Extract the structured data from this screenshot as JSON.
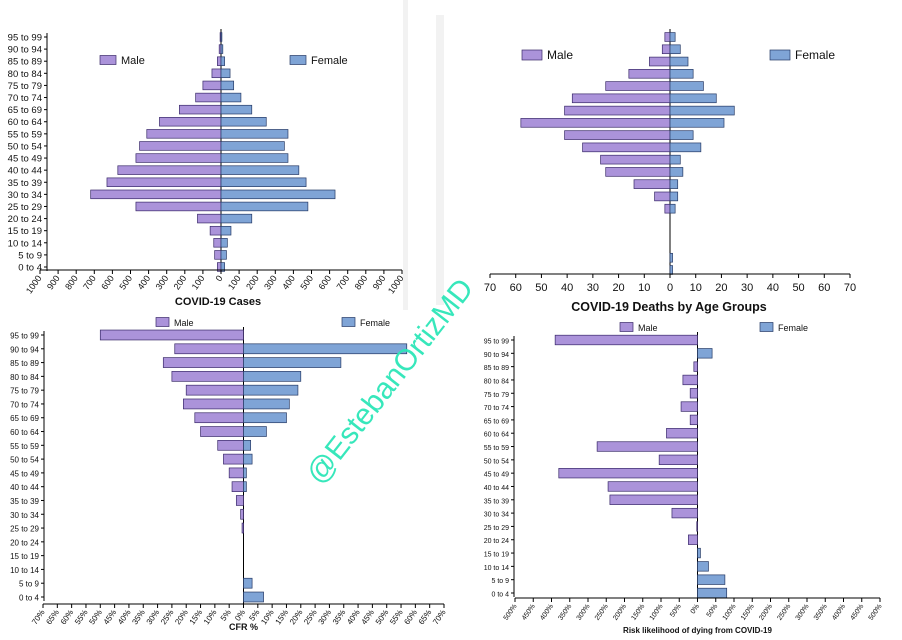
{
  "watermark": "@EstebanOrtizMD",
  "colors": {
    "male": "#ab93da",
    "female": "#7fa4d6",
    "male_stroke": "#3a2a6a",
    "female_stroke": "#263a66",
    "axis": "#000000"
  },
  "chart_data": [
    {
      "id": "cases",
      "type": "bar",
      "orientation": "horizontal-population-pyramid",
      "title": "COVID-19 Cases",
      "categories": [
        "95 to 99",
        "90 to 94",
        "85 to 89",
        "80 to 84",
        "75 to 79",
        "70 to 74",
        "65 to 69",
        "60 to 64",
        "55 to 59",
        "50 to 54",
        "45 to 49",
        "40 to 44",
        "35 to 39",
        "30 to 34",
        "25 to 29",
        "20 to 24",
        "15 to 19",
        "10 to 14",
        "5 to 9",
        "0 to 4"
      ],
      "legend": {
        "male": "Male",
        "female": "Female"
      },
      "xlim": [
        -1000,
        1000
      ],
      "xticks": [
        -1000,
        -900,
        -800,
        -700,
        -600,
        -500,
        -400,
        -300,
        -200,
        -100,
        0,
        100,
        200,
        300,
        400,
        500,
        600,
        700,
        800,
        900,
        1000
      ],
      "xtick_labels": [
        "1000",
        "900",
        "800",
        "700",
        "600",
        "500",
        "400",
        "300",
        "200",
        "100",
        "0",
        "100",
        "200",
        "300",
        "400",
        "500",
        "600",
        "700",
        "800",
        "900",
        "1000"
      ],
      "series": [
        {
          "name": "Male",
          "values": [
            -5,
            -10,
            -20,
            -50,
            -100,
            -140,
            -230,
            -340,
            -410,
            -450,
            -470,
            -570,
            -630,
            -720,
            -470,
            -130,
            -60,
            -40,
            -35,
            -20
          ]
        },
        {
          "name": "Female",
          "values": [
            5,
            10,
            20,
            50,
            70,
            110,
            170,
            250,
            370,
            350,
            370,
            430,
            470,
            630,
            480,
            170,
            55,
            35,
            30,
            20
          ]
        }
      ]
    },
    {
      "id": "deaths",
      "type": "bar",
      "orientation": "horizontal-population-pyramid",
      "title": "COVID-19  Deaths by Age Groups",
      "legend": {
        "male": "Male",
        "female": "Female"
      },
      "xlim": [
        -70,
        70
      ],
      "xticks": [
        -70,
        -60,
        -50,
        -40,
        -30,
        -20,
        -10,
        0,
        10,
        20,
        30,
        40,
        50,
        60,
        70
      ],
      "xtick_labels": [
        "70",
        "60",
        "50",
        "40",
        "30",
        "20",
        "10",
        "0",
        "10",
        "20",
        "30",
        "40",
        "50",
        "60",
        "70"
      ],
      "series": [
        {
          "name": "Male",
          "values": [
            -2,
            -3,
            -8,
            -16,
            -25,
            -38,
            -41,
            -58,
            -41,
            -34,
            -27,
            -25,
            -14,
            -6,
            -2,
            0,
            0,
            0,
            0,
            0
          ]
        },
        {
          "name": "Female",
          "values": [
            2,
            4,
            7,
            9,
            13,
            18,
            25,
            21,
            9,
            12,
            4,
            5,
            3,
            3,
            2,
            0,
            0,
            0,
            1,
            1
          ]
        }
      ]
    },
    {
      "id": "cfr",
      "type": "bar",
      "orientation": "horizontal-population-pyramid",
      "title": "CFR %",
      "categories": [
        "95 to 99",
        "90 to 94",
        "85 to 89",
        "80 to 84",
        "75 to 79",
        "70 to 74",
        "65 to 69",
        "60 to 64",
        "55 to 59",
        "50 to 54",
        "45 to 49",
        "40 to 44",
        "35 to 39",
        "30 to 34",
        "25 to 29",
        "20 to 24",
        "15 to 19",
        "10 to 14",
        "5 to 9",
        "0 to 4"
      ],
      "legend": {
        "male": "Male",
        "female": "Female"
      },
      "xlim": [
        -70,
        70
      ],
      "xticks": [
        -70,
        -65,
        -60,
        -55,
        -50,
        -45,
        -40,
        -35,
        -30,
        -25,
        -20,
        -15,
        -10,
        -5,
        0,
        5,
        10,
        15,
        20,
        25,
        30,
        35,
        40,
        45,
        50,
        55,
        60,
        65,
        70
      ],
      "xtick_labels": [
        "70%",
        "65%",
        "60%",
        "55%",
        "50%",
        "45%",
        "40%",
        "35%",
        "30%",
        "25%",
        "20%",
        "15%",
        "10%",
        "5%",
        "0%",
        "5%",
        "10%",
        "15%",
        "20%",
        "25%",
        "30%",
        "35%",
        "40%",
        "45%",
        "50%",
        "55%",
        "60%",
        "65%",
        "70%"
      ],
      "series": [
        {
          "name": "Male",
          "values": [
            -50,
            -24,
            -28,
            -25,
            -20,
            -21,
            -17,
            -15,
            -9,
            -7,
            -5,
            -4,
            -2.5,
            -1,
            -0.5,
            0,
            0,
            0,
            0,
            0
          ]
        },
        {
          "name": "Female",
          "values": [
            0,
            57,
            34,
            20,
            19,
            16,
            15,
            8,
            2.5,
            3,
            1,
            1,
            0,
            0,
            0,
            0,
            0,
            0,
            3,
            7
          ]
        }
      ]
    },
    {
      "id": "risk",
      "type": "bar",
      "orientation": "horizontal-population-pyramid",
      "title": "Risk likelihood of dying from COVID-19",
      "categories": [
        "95 to 99",
        "90 to 94",
        "85 to 89",
        "80 to 84",
        "75 to 79",
        "70 to 74",
        "65 to 69",
        "60 to 64",
        "55 to 59",
        "50 to 54",
        "45 to 49",
        "40 to 44",
        "35 to 39",
        "30 to 34",
        "25 to 29",
        "20 to 24",
        "15 to 19",
        "10 to 14",
        "5 to 9",
        "0 to 4"
      ],
      "legend": {
        "male": "Male",
        "female": "Female"
      },
      "xlim": [
        -500,
        500
      ],
      "xticks": [
        -500,
        -450,
        -400,
        -350,
        -300,
        -250,
        -200,
        -150,
        -100,
        -50,
        0,
        50,
        100,
        150,
        200,
        250,
        300,
        350,
        400,
        450,
        500
      ],
      "xtick_labels": [
        "500%",
        "450%",
        "400%",
        "350%",
        "300%",
        "250%",
        "200%",
        "150%",
        "100%",
        "50%",
        "0%",
        "50%",
        "100%",
        "150%",
        "200%",
        "250%",
        "300%",
        "350%",
        "400%",
        "450%",
        "500%"
      ],
      "series": [
        {
          "name": "Male",
          "values": [
            -390,
            0,
            -10,
            -40,
            -20,
            -45,
            -20,
            -85,
            -275,
            -105,
            -380,
            -245,
            -240,
            -70,
            -2,
            -25,
            0,
            0,
            0,
            0
          ]
        },
        {
          "name": "Female",
          "values": [
            0,
            40,
            0,
            0,
            0,
            0,
            0,
            0,
            0,
            0,
            0,
            0,
            0,
            0,
            0,
            0,
            8,
            30,
            75,
            80
          ]
        }
      ]
    }
  ]
}
